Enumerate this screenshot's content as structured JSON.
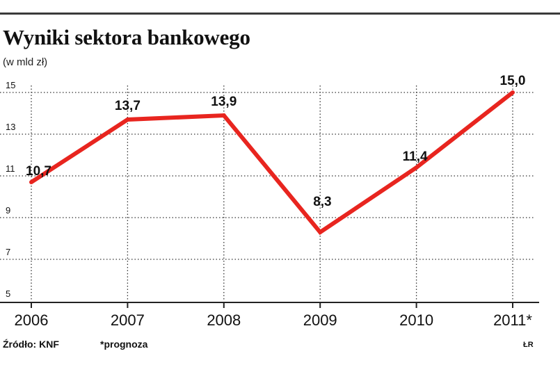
{
  "chart_data": {
    "type": "line",
    "title": "Wyniki sektora bankowego",
    "subtitle": "(w mld zł)",
    "x": [
      "2006",
      "2007",
      "2008",
      "2009",
      "2010",
      "2011*"
    ],
    "series": [
      {
        "values": [
          10.7,
          13.7,
          13.9,
          8.3,
          11.4,
          15.0
        ],
        "labels": [
          "10,7",
          "13,7",
          "13,9",
          "8,3",
          "11,4",
          "15,0"
        ]
      }
    ],
    "y_ticks": [
      5,
      7,
      9,
      11,
      13,
      15
    ],
    "ylim": [
      5,
      15
    ],
    "grid": true,
    "line_color": "#e8251f"
  },
  "footer": {
    "source": "Źródło: KNF",
    "note": "*prognoza",
    "credit": "ŁR"
  }
}
